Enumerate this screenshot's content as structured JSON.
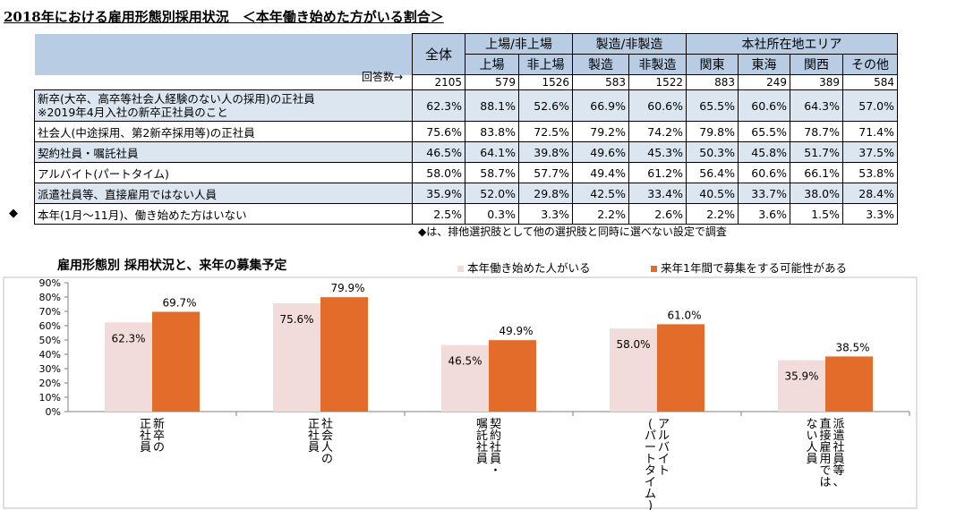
{
  "title": "2018年における雇用形態別採用状況　＜本年働き始めた方がいる割合＞",
  "table": {
    "header_groups": [
      "上場/非上場",
      "製造/非製造",
      "本社所在地エリア"
    ],
    "total_label": "全体",
    "columns": [
      "上場",
      "非上場",
      "製造",
      "非製造",
      "関東",
      "東海",
      "関西",
      "その他"
    ],
    "respondents_label": "回答数→",
    "respondents": [
      "2105",
      "579",
      "1526",
      "583",
      "1522",
      "883",
      "249",
      "389",
      "584"
    ],
    "rows": [
      {
        "label": "新卒(大卒、高卒等社会人経験のない人の採用)の正社員",
        "sublabel": "※2019年4月入社の新卒正社員のこと",
        "values": [
          "62.3%",
          "88.1%",
          "52.6%",
          "66.9%",
          "60.6%",
          "65.5%",
          "60.6%",
          "64.3%",
          "57.0%"
        ]
      },
      {
        "label": "社会人(中途採用、第2新卒採用等)の正社員",
        "values": [
          "75.6%",
          "83.8%",
          "72.5%",
          "79.2%",
          "74.2%",
          "79.8%",
          "65.5%",
          "78.7%",
          "71.4%"
        ]
      },
      {
        "label": "契約社員・嘱託社員",
        "values": [
          "46.5%",
          "64.1%",
          "39.8%",
          "49.6%",
          "45.3%",
          "50.3%",
          "45.8%",
          "51.7%",
          "37.5%"
        ]
      },
      {
        "label": "アルバイト(パートタイム)",
        "values": [
          "58.0%",
          "58.7%",
          "57.7%",
          "49.4%",
          "61.2%",
          "56.4%",
          "60.6%",
          "66.1%",
          "53.8%"
        ]
      },
      {
        "label": "派遣社員等、直接雇用ではない人員",
        "values": [
          "35.9%",
          "52.0%",
          "29.8%",
          "42.5%",
          "33.4%",
          "40.5%",
          "33.7%",
          "38.0%",
          "28.4%"
        ]
      },
      {
        "label": "本年(1月～11月)、働き始めた方はいない",
        "values": [
          "2.5%",
          "0.3%",
          "3.3%",
          "2.2%",
          "2.6%",
          "2.2%",
          "3.6%",
          "1.5%",
          "3.3%"
        ]
      }
    ],
    "exclusive_mark": "◆",
    "note": "◆は、排他選択肢として他の選択肢と同時に選べない設定で調査"
  },
  "chart_data": {
    "type": "bar",
    "title": "雇用形態別  採用状況と、来年の募集予定",
    "categories": [
      "新卒の正社員",
      "社会人の正社員",
      "契約社員・嘱託社員",
      "アルバイト(パートタイム)",
      "派遣社員等、直接雇用ではない人員"
    ],
    "category_lines": [
      [
        "新卒の",
        "正社員"
      ],
      [
        "社会人の",
        "正社員"
      ],
      [
        "契約社員・",
        "嘱託社員"
      ],
      [
        "アルバイト",
        "(パートタイム)"
      ],
      [
        "派遣社員等、",
        "直接雇用では",
        "ない人員"
      ]
    ],
    "series": [
      {
        "name": "本年働き始めた人がいる",
        "values": [
          62.3,
          75.6,
          46.5,
          58.0,
          35.9
        ],
        "color": "#f2dcdb"
      },
      {
        "name": "来年1年間で募集をする可能性がある",
        "values": [
          69.7,
          79.9,
          49.9,
          61.0,
          38.5
        ],
        "color": "#e46c2a"
      }
    ],
    "ylim": [
      0,
      90
    ],
    "yticks": [
      "0%",
      "10%",
      "20%",
      "30%",
      "40%",
      "50%",
      "60%",
      "70%",
      "80%",
      "90%"
    ],
    "legend_position": "top",
    "grid": false
  }
}
